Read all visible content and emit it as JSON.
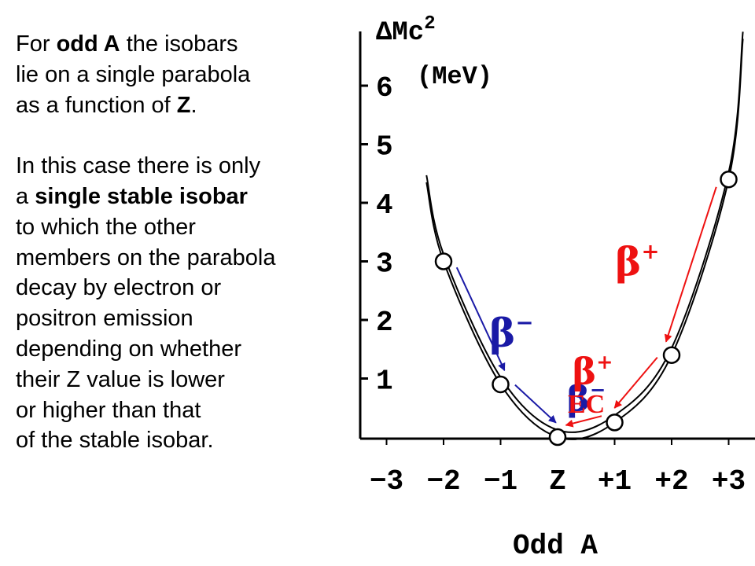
{
  "text": {
    "p1": [
      {
        "before": "For ",
        "bold": "odd A",
        "after": " the isobars"
      },
      {
        "before": "lie on a single parabola",
        "bold": "",
        "after": ""
      },
      {
        "before": "as a function of ",
        "bold": "Z",
        "after": "."
      }
    ],
    "p2": [
      {
        "before": "In this case there is only",
        "bold": "",
        "after": ""
      },
      {
        "before": "a ",
        "bold": "single stable isobar",
        "after": ""
      },
      {
        "before": "to which the other",
        "bold": "",
        "after": ""
      },
      {
        "before": "members on the parabola",
        "bold": "",
        "after": ""
      },
      {
        "before": "decay by electron or",
        "bold": "",
        "after": ""
      },
      {
        "before": "positron emission",
        "bold": "",
        "after": ""
      },
      {
        "before": "depending on whether",
        "bold": "",
        "after": ""
      },
      {
        "before": "their Z value is lower",
        "bold": "",
        "after": ""
      },
      {
        "before": "or higher than that",
        "bold": "",
        "after": ""
      },
      {
        "before": "of the stable isobar.",
        "bold": "",
        "after": ""
      }
    ]
  },
  "diagram": {
    "y_axis_label_main": "ΔMc",
    "y_axis_label_sup": "2",
    "y_axis_unit": "(MeV)",
    "y_ticks": [
      {
        "value": 1,
        "label": "1"
      },
      {
        "value": 2,
        "label": "2"
      },
      {
        "value": 3,
        "label": "3"
      },
      {
        "value": 4,
        "label": "4"
      },
      {
        "value": 5,
        "label": "5"
      },
      {
        "value": 6,
        "label": "6"
      }
    ],
    "x_ticks": [
      {
        "value": -3,
        "label": "−3"
      },
      {
        "value": -2,
        "label": "−2"
      },
      {
        "value": -1,
        "label": "−1"
      },
      {
        "value": 0,
        "label": "Z"
      },
      {
        "value": 1,
        "label": "+1"
      },
      {
        "value": 2,
        "label": "+2"
      },
      {
        "value": 3,
        "label": "+3"
      }
    ],
    "x_axis_label": "Odd A",
    "isobars": [
      {
        "z": -2,
        "mass": 3.0
      },
      {
        "z": -1,
        "mass": 0.9
      },
      {
        "z": 0,
        "mass": 0.0
      },
      {
        "z": 1,
        "mass": 0.25
      },
      {
        "z": 2,
        "mass": 1.4
      },
      {
        "z": 3,
        "mass": 4.4
      }
    ],
    "decays": [
      {
        "from": -2,
        "to": -1,
        "greek": "β",
        "sup": "−",
        "color": "#1a1aa6"
      },
      {
        "from": -1,
        "to": 0,
        "greek": "β",
        "sup": "−",
        "color": "#1a1aa6"
      },
      {
        "from": 1,
        "to": 0,
        "greek": "EC",
        "sup": "",
        "color": "#ee1111"
      },
      {
        "from": 2,
        "to": 1,
        "greek": "β",
        "sup": "+",
        "color": "#ee1111"
      },
      {
        "from": 3,
        "to": 2,
        "greek": "β",
        "sup": "+",
        "color": "#ee1111"
      }
    ],
    "colors": {
      "axis": "#000000",
      "curve": "#000000",
      "beta_minus": "#1a1aa6",
      "beta_plus": "#ee1111"
    }
  }
}
